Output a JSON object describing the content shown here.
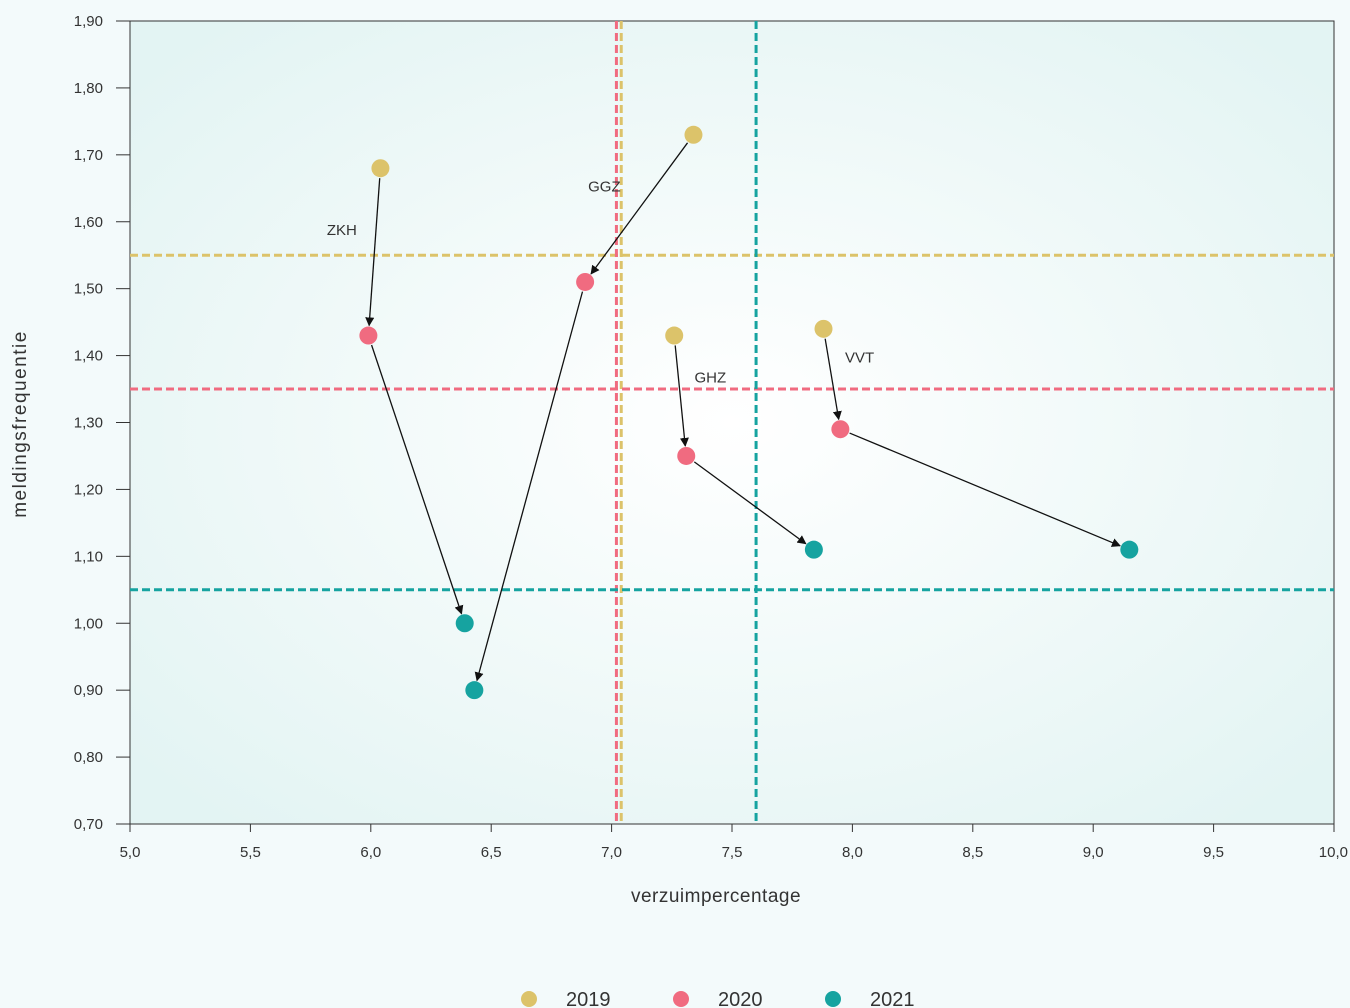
{
  "chart_data": {
    "type": "scatter",
    "title": "",
    "xlabel": "verzuimpercentage",
    "ylabel": "meldingsfrequentie",
    "xlim": [
      5.0,
      10.0
    ],
    "ylim": [
      0.7,
      1.9
    ],
    "x_ticks": [
      5.0,
      5.5,
      6.0,
      6.5,
      7.0,
      7.5,
      8.0,
      8.5,
      9.0,
      9.5,
      10.0
    ],
    "x_tick_labels": [
      "5,0",
      "5,5",
      "6,0",
      "6,5",
      "7,0",
      "7,5",
      "8,0",
      "8,5",
      "9,0",
      "9,5",
      "10,0"
    ],
    "y_ticks": [
      0.7,
      0.8,
      0.9,
      1.0,
      1.1,
      1.2,
      1.3,
      1.4,
      1.5,
      1.6,
      1.7,
      1.8,
      1.9
    ],
    "y_tick_labels": [
      "0,70",
      "0,80",
      "0,90",
      "1,00",
      "1,10",
      "1,20",
      "1,30",
      "1,40",
      "1,50",
      "1,60",
      "1,70",
      "1,80",
      "1,90"
    ],
    "grid": false,
    "legend_position": "bottom",
    "series": [
      {
        "name": "2019",
        "color": "#dcc36a",
        "points": [
          {
            "group": "ZKH",
            "x": 6.04,
            "y": 1.68
          },
          {
            "group": "GGZ",
            "x": 7.34,
            "y": 1.73
          },
          {
            "group": "GHZ",
            "x": 7.26,
            "y": 1.43
          },
          {
            "group": "VVT",
            "x": 7.88,
            "y": 1.44
          }
        ],
        "reference_lines": {
          "x": 7.04,
          "y": 1.55
        }
      },
      {
        "name": "2020",
        "color": "#f06b80",
        "points": [
          {
            "group": "ZKH",
            "x": 5.99,
            "y": 1.43
          },
          {
            "group": "GGZ",
            "x": 6.89,
            "y": 1.51
          },
          {
            "group": "GHZ",
            "x": 7.31,
            "y": 1.25
          },
          {
            "group": "VVT",
            "x": 7.95,
            "y": 1.29
          }
        ],
        "reference_lines": {
          "x": 7.02,
          "y": 1.35
        }
      },
      {
        "name": "2021",
        "color": "#16a3a0",
        "points": [
          {
            "group": "ZKH",
            "x": 6.39,
            "y": 1.0
          },
          {
            "group": "GGZ",
            "x": 6.43,
            "y": 0.9
          },
          {
            "group": "GHZ",
            "x": 7.84,
            "y": 1.11
          },
          {
            "group": "VVT",
            "x": 9.15,
            "y": 1.11
          }
        ],
        "reference_lines": {
          "x": 7.6,
          "y": 1.05
        }
      }
    ],
    "annotations": [
      {
        "text": "ZKH",
        "x": 5.88,
        "y": 1.58
      },
      {
        "text": "GGZ",
        "x": 6.97,
        "y": 1.645
      },
      {
        "text": "GHZ",
        "x": 7.41,
        "y": 1.36
      },
      {
        "text": "VVT",
        "x": 8.03,
        "y": 1.39
      }
    ],
    "arrows": [
      {
        "group": "ZKH",
        "from": "2019",
        "to": "2020"
      },
      {
        "group": "ZKH",
        "from": "2020",
        "to": "2021"
      },
      {
        "group": "GGZ",
        "from": "2019",
        "to": "2020"
      },
      {
        "group": "GGZ",
        "from": "2020",
        "to": "2021"
      },
      {
        "group": "GHZ",
        "from": "2019",
        "to": "2020"
      },
      {
        "group": "GHZ",
        "from": "2020",
        "to": "2021"
      },
      {
        "group": "VVT",
        "from": "2019",
        "to": "2020"
      },
      {
        "group": "VVT",
        "from": "2020",
        "to": "2021"
      }
    ]
  }
}
